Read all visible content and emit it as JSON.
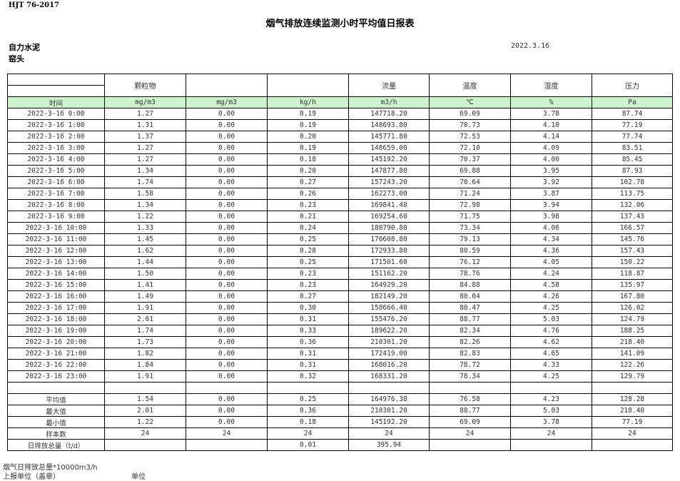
{
  "standard": "HJT  76-2017",
  "title": "烟气排放连续监测小时平均值日报表",
  "company": "自力水泥",
  "unit": "窑头",
  "date": "2022.3.16",
  "headers": [
    "",
    "颗粒物",
    "",
    "",
    "流量",
    "温度",
    "湿度",
    "压力"
  ],
  "units": [
    "时间",
    "mg/m3",
    "mg/m3",
    "kg/h",
    "m3/h",
    "℃",
    "%",
    "Pa"
  ],
  "rows": [
    [
      "2022-3-16 0:00",
      "1.27",
      "0.00",
      "0.19",
      "147718.20",
      "69.09",
      "3.78",
      "87.74"
    ],
    [
      "2022-3-16 1:00",
      "1.31",
      "0.00",
      "0.19",
      "148693.80",
      "70.73",
      "4.10",
      "77.19"
    ],
    [
      "2022-3-16 2:00",
      "1.37",
      "0.00",
      "0.20",
      "145771.80",
      "72.53",
      "4.14",
      "77.74"
    ],
    [
      "2022-3-16 3:00",
      "1.27",
      "0.00",
      "0.19",
      "148659.00",
      "72.10",
      "4.09",
      "83.51"
    ],
    [
      "2022-3-16 4:00",
      "1.27",
      "0.00",
      "0.18",
      "145192.20",
      "70.37",
      "4.00",
      "85.45"
    ],
    [
      "2022-3-16 5:00",
      "1.34",
      "0.00",
      "0.20",
      "147877.80",
      "69.88",
      "3.95",
      "87.93"
    ],
    [
      "2022-3-16 6:00",
      "1.74",
      "0.00",
      "0.27",
      "157243.20",
      "70.64",
      "3.92",
      "102.78"
    ],
    [
      "2022-3-16 7:00",
      "1.58",
      "0.00",
      "0.26",
      "162273.00",
      "71.24",
      "3.87",
      "113.75"
    ],
    [
      "2022-3-16 8:00",
      "1.34",
      "0.00",
      "0.23",
      "169841.40",
      "72.98",
      "3.94",
      "132.06"
    ],
    [
      "2022-3-16 9:00",
      "1.22",
      "0.00",
      "0.21",
      "169254.60",
      "71.75",
      "3.98",
      "137.43"
    ],
    [
      "2022-3-16 10:00",
      "1.33",
      "0.00",
      "0.24",
      "180790.80",
      "73.34",
      "4.06",
      "166.57"
    ],
    [
      "2022-3-16 11:00",
      "1.45",
      "0.00",
      "0.25",
      "170608.80",
      "79.13",
      "4.34",
      "145.76"
    ],
    [
      "2022-3-16 12:00",
      "1.62",
      "0.00",
      "0.28",
      "172933.80",
      "80.59",
      "4.36",
      "157.43"
    ],
    [
      "2022-3-16 13:00",
      "1.44",
      "0.00",
      "0.25",
      "171501.60",
      "76.12",
      "4.05",
      "150.22"
    ],
    [
      "2022-3-16 14:00",
      "1.50",
      "0.00",
      "0.23",
      "151162.20",
      "78.76",
      "4.24",
      "118.87"
    ],
    [
      "2022-3-16 15:00",
      "1.41",
      "0.00",
      "0.23",
      "164929.20",
      "84.88",
      "4.58",
      "135.97"
    ],
    [
      "2022-3-16 16:00",
      "1.49",
      "0.00",
      "0.27",
      "182149.20",
      "80.04",
      "4.26",
      "167.80"
    ],
    [
      "2022-3-16 17:00",
      "1.91",
      "0.00",
      "0.30",
      "158666.40",
      "80.47",
      "4.25",
      "126.02"
    ],
    [
      "2022-3-16 18:00",
      "2.01",
      "0.00",
      "0.31",
      "155476.20",
      "88.77",
      "5.03",
      "124.79"
    ],
    [
      "2022-3-16 19:00",
      "1.74",
      "0.00",
      "0.33",
      "189622.20",
      "82.34",
      "4.76",
      "188.25"
    ],
    [
      "2022-3-16 20:00",
      "1.73",
      "0.00",
      "0.36",
      "210301.20",
      "82.26",
      "4.62",
      "218.40"
    ],
    [
      "2022-3-16 21:00",
      "1.82",
      "0.00",
      "0.31",
      "172419.00",
      "82.83",
      "4.65",
      "141.09"
    ],
    [
      "2022-3-16 22:00",
      "1.84",
      "0.00",
      "0.31",
      "168016.20",
      "78.72",
      "4.33",
      "122.26"
    ],
    [
      "2022-3-16 23:00",
      "1.91",
      "0.00",
      "0.32",
      "168331.20",
      "78.34",
      "4.25",
      "129.79"
    ]
  ],
  "summary": [
    [
      "平均值",
      "1.54",
      "0.00",
      "0.25",
      "164976.38",
      "76.58",
      "4.23",
      "128.28"
    ],
    [
      "最大值",
      "2.01",
      "0.00",
      "0.36",
      "210301.20",
      "88.77",
      "5.03",
      "218.40"
    ],
    [
      "最小值",
      "1.22",
      "0.00",
      "0.18",
      "145192.20",
      "69.09",
      "3.78",
      "77.19"
    ],
    [
      "样本数",
      "24",
      "24",
      "24",
      "24",
      "24",
      "24",
      "24"
    ],
    [
      "日排放总量（t/d）",
      "",
      "",
      "0.01",
      "395.94",
      "",
      "",
      ""
    ]
  ],
  "footer": {
    "note": "烟气日排放总量*10000m3/h",
    "reporter": "上报单位（盖章）",
    "unit_label": "单位"
  }
}
